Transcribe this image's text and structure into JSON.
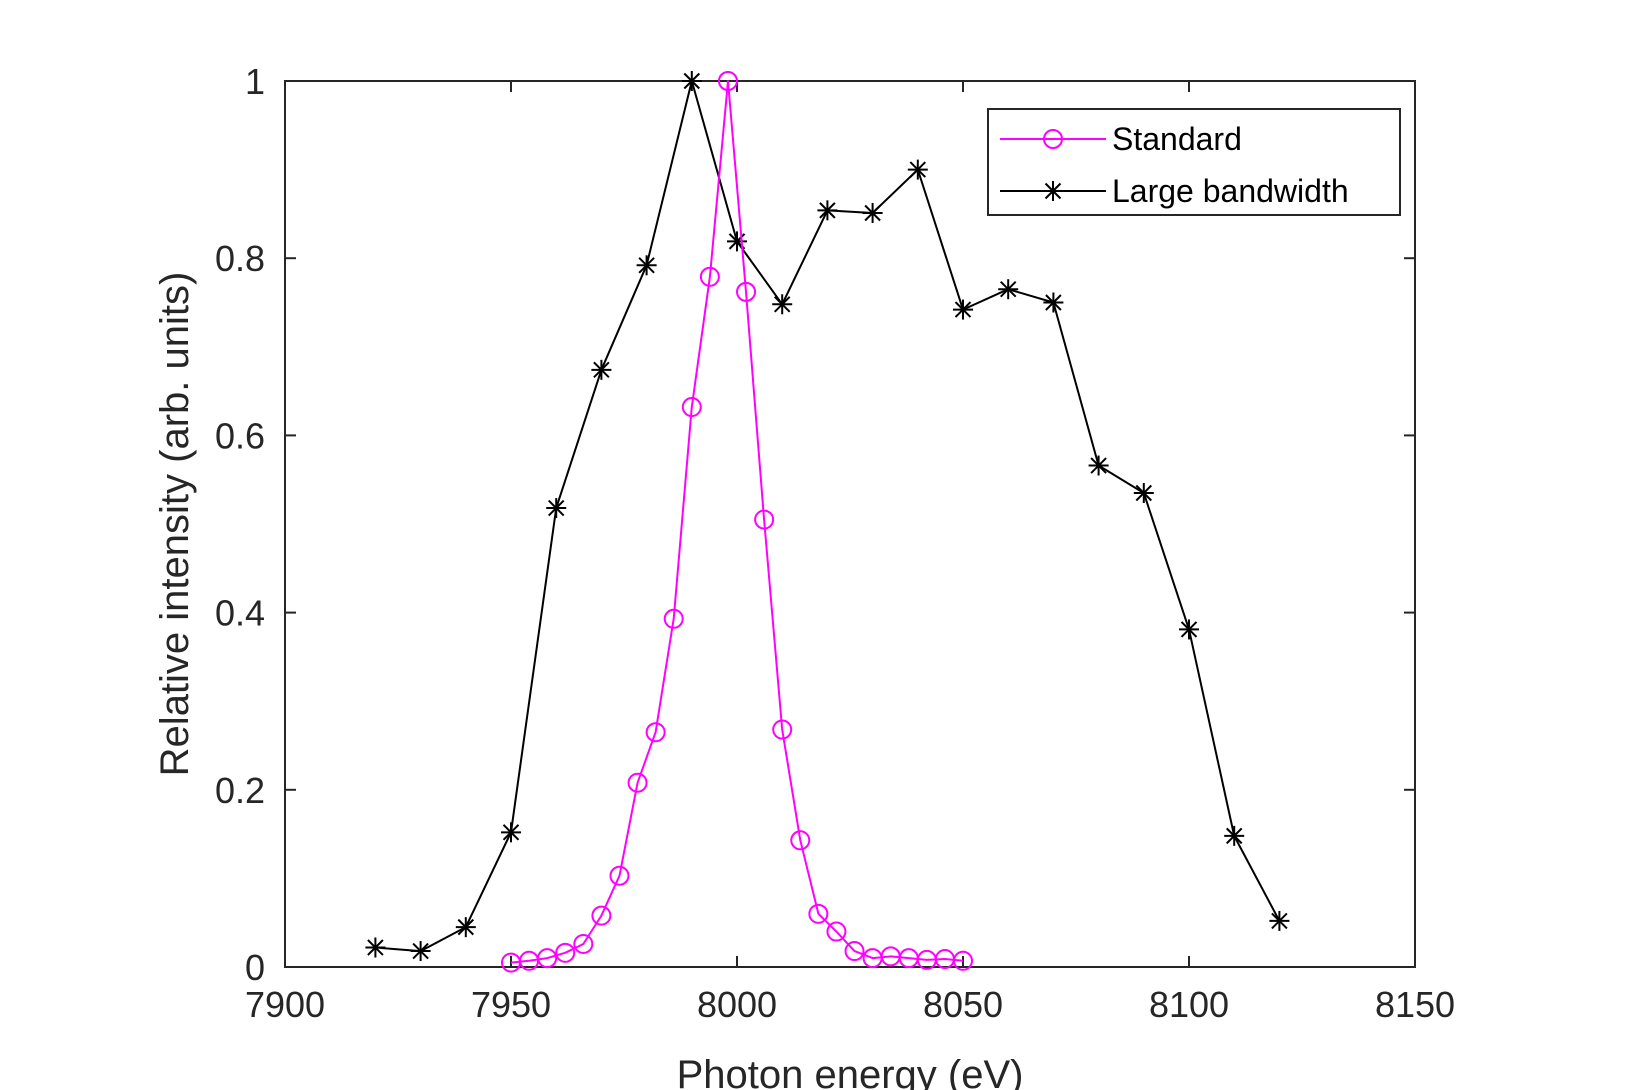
{
  "chart_data": {
    "type": "line",
    "title": "",
    "xlabel": "Photon energy (eV)",
    "ylabel": "Relative intensity (arb. units)",
    "xlim": [
      7900,
      8150
    ],
    "ylim": [
      0,
      1
    ],
    "xticks": [
      7900,
      7950,
      8000,
      8050,
      8100,
      8150
    ],
    "xtick_labels": [
      "7900",
      "7950",
      "8000",
      "8050",
      "8100",
      "8150"
    ],
    "yticks": [
      0,
      0.2,
      0.4,
      0.6,
      0.8,
      1
    ],
    "ytick_labels": [
      "0",
      "0.2",
      "0.4",
      "0.6",
      "0.8",
      "1"
    ],
    "grid": false,
    "legend_position": "top-right",
    "series": [
      {
        "name": "Standard",
        "color": "#ff00ff",
        "marker": "circle",
        "x": [
          7950,
          7954,
          7958,
          7962,
          7966,
          7970,
          7974,
          7978,
          7982,
          7986,
          7990,
          7994,
          7998,
          8002,
          8006,
          8010,
          8014,
          8018,
          8022,
          8026,
          8030,
          8034,
          8038,
          8042,
          8046,
          8050
        ],
        "y": [
          0.005,
          0.007,
          0.01,
          0.016,
          0.026,
          0.058,
          0.103,
          0.208,
          0.265,
          0.393,
          0.632,
          0.779,
          1.0,
          0.762,
          0.505,
          0.268,
          0.143,
          0.06,
          0.04,
          0.018,
          0.01,
          0.012,
          0.01,
          0.008,
          0.009,
          0.007
        ]
      },
      {
        "name": "Large bandwidth",
        "color": "#000000",
        "marker": "asterisk",
        "x": [
          7920,
          7930,
          7940,
          7950,
          7960,
          7970,
          7980,
          7990,
          8000,
          8010,
          8020,
          8030,
          8040,
          8050,
          8060,
          8070,
          8080,
          8090,
          8100,
          8110,
          8120
        ],
        "y": [
          0.022,
          0.018,
          0.045,
          0.152,
          0.518,
          0.674,
          0.792,
          1.0,
          0.819,
          0.748,
          0.854,
          0.851,
          0.9,
          0.742,
          0.765,
          0.75,
          0.566,
          0.535,
          0.381,
          0.148,
          0.052
        ]
      }
    ]
  }
}
